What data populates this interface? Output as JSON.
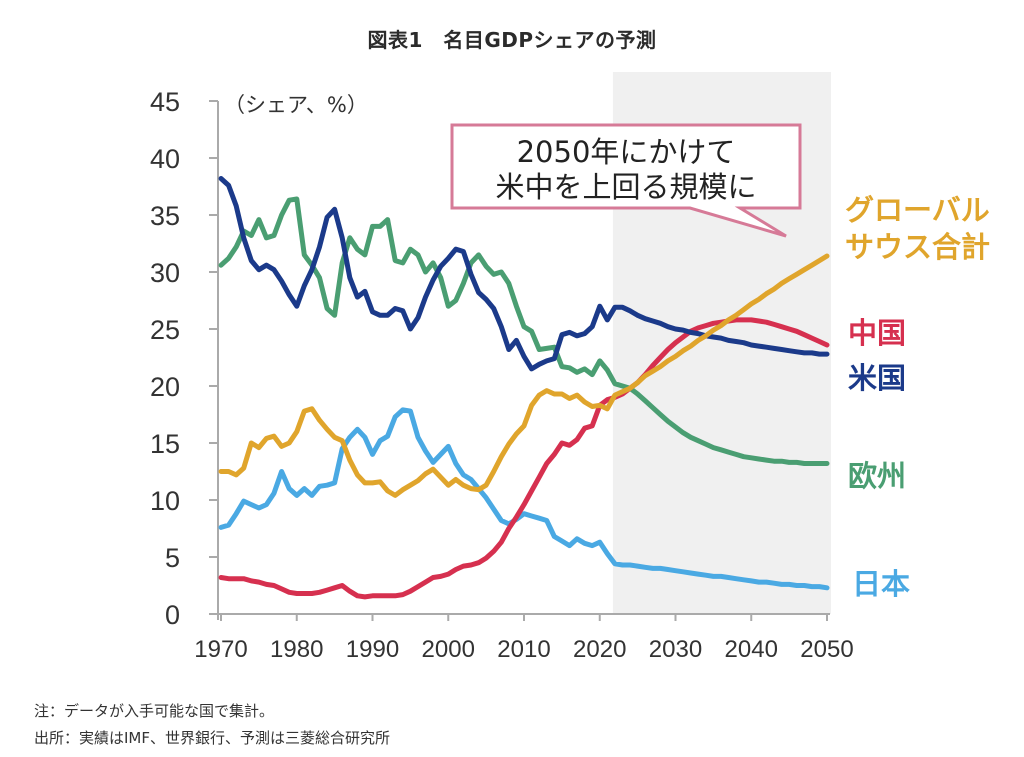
{
  "chart_data": {
    "type": "line",
    "title": "図表1　名目GDPシェアの予測",
    "ylabel": "（シェア、%）",
    "xlabel": "",
    "xlim": [
      1970,
      2050
    ],
    "ylim": [
      0,
      45
    ],
    "xticks": [
      1970,
      1980,
      1990,
      2000,
      2010,
      2020,
      2030,
      2040,
      2050
    ],
    "yticks": [
      0,
      5,
      10,
      15,
      20,
      25,
      30,
      35,
      40,
      45
    ],
    "grid": false,
    "forecast_region": {
      "from": 2022,
      "to": 2050,
      "color": "#f0f0f0"
    },
    "x": [
      1970,
      1971,
      1972,
      1973,
      1974,
      1975,
      1976,
      1977,
      1978,
      1979,
      1980,
      1981,
      1982,
      1983,
      1984,
      1985,
      1986,
      1987,
      1988,
      1989,
      1990,
      1991,
      1992,
      1993,
      1994,
      1995,
      1996,
      1997,
      1998,
      1999,
      2000,
      2001,
      2002,
      2003,
      2004,
      2005,
      2006,
      2007,
      2008,
      2009,
      2010,
      2011,
      2012,
      2013,
      2014,
      2015,
      2016,
      2017,
      2018,
      2019,
      2020,
      2021,
      2022,
      2023,
      2024,
      2025,
      2026,
      2027,
      2028,
      2029,
      2030,
      2031,
      2032,
      2033,
      2034,
      2035,
      2036,
      2037,
      2038,
      2039,
      2040,
      2041,
      2042,
      2043,
      2044,
      2045,
      2046,
      2047,
      2048,
      2049,
      2050
    ],
    "series": [
      {
        "name": "米国",
        "color": "#1b3a8a",
        "values": [
          38.2,
          37.6,
          35.8,
          33.0,
          31.0,
          30.2,
          30.6,
          30.2,
          29.2,
          28.0,
          27.0,
          28.8,
          30.2,
          32.2,
          34.8,
          35.5,
          33.0,
          29.5,
          27.8,
          28.3,
          26.5,
          26.2,
          26.2,
          26.8,
          26.6,
          25.0,
          26.0,
          27.8,
          29.3,
          30.5,
          31.2,
          32.0,
          31.8,
          29.8,
          28.2,
          27.6,
          26.8,
          25.2,
          23.2,
          24.0,
          22.6,
          21.5,
          21.9,
          22.2,
          22.4,
          24.5,
          24.7,
          24.4,
          24.6,
          25.2,
          27.0,
          25.8,
          26.9,
          26.9,
          26.6,
          26.2,
          25.9,
          25.7,
          25.5,
          25.2,
          25.0,
          24.9,
          24.7,
          24.6,
          24.4,
          24.3,
          24.2,
          24.0,
          23.9,
          23.8,
          23.6,
          23.5,
          23.4,
          23.3,
          23.2,
          23.1,
          23.0,
          22.9,
          22.9,
          22.8,
          22.8
        ]
      },
      {
        "name": "中国",
        "color": "#d6304f",
        "values": [
          3.2,
          3.1,
          3.1,
          3.1,
          2.9,
          2.8,
          2.6,
          2.5,
          2.2,
          1.9,
          1.8,
          1.8,
          1.8,
          1.9,
          2.1,
          2.3,
          2.5,
          2.0,
          1.6,
          1.5,
          1.6,
          1.6,
          1.6,
          1.6,
          1.7,
          2.0,
          2.4,
          2.8,
          3.2,
          3.3,
          3.5,
          3.9,
          4.2,
          4.3,
          4.5,
          4.9,
          5.5,
          6.3,
          7.5,
          8.5,
          9.6,
          10.8,
          12.0,
          13.2,
          14.0,
          15.0,
          14.8,
          15.3,
          16.3,
          16.5,
          18.3,
          18.8,
          19.0,
          19.3,
          19.8,
          20.3,
          21.0,
          21.8,
          22.5,
          23.2,
          23.8,
          24.3,
          24.8,
          25.1,
          25.3,
          25.5,
          25.6,
          25.7,
          25.8,
          25.8,
          25.8,
          25.7,
          25.6,
          25.4,
          25.2,
          25.0,
          24.8,
          24.5,
          24.2,
          23.9,
          23.6
        ]
      },
      {
        "name": "欧州",
        "color": "#4a9e72",
        "values": [
          30.6,
          31.2,
          32.2,
          33.6,
          33.2,
          34.6,
          33.0,
          33.2,
          35.0,
          36.3,
          36.4,
          31.5,
          30.6,
          29.5,
          26.8,
          26.2,
          30.8,
          33.0,
          32.0,
          31.5,
          34.0,
          34.0,
          34.6,
          31.0,
          30.8,
          32.0,
          31.5,
          30.0,
          30.8,
          29.5,
          27.0,
          27.5,
          29.0,
          30.8,
          31.5,
          30.5,
          29.8,
          30.0,
          29.0,
          27.0,
          25.2,
          24.8,
          23.2,
          23.3,
          23.4,
          21.7,
          21.6,
          21.2,
          21.5,
          21.0,
          22.2,
          21.4,
          20.2,
          20.0,
          19.8,
          19.3,
          18.7,
          18.1,
          17.5,
          16.9,
          16.4,
          15.9,
          15.5,
          15.2,
          14.9,
          14.6,
          14.4,
          14.2,
          14.0,
          13.8,
          13.7,
          13.6,
          13.5,
          13.4,
          13.4,
          13.3,
          13.3,
          13.2,
          13.2,
          13.2,
          13.2
        ]
      },
      {
        "name": "日本",
        "color": "#4aa9e3",
        "values": [
          7.6,
          7.8,
          8.8,
          9.9,
          9.6,
          9.3,
          9.6,
          10.6,
          12.5,
          11.0,
          10.4,
          11.0,
          10.4,
          11.2,
          11.3,
          11.5,
          14.5,
          15.5,
          16.2,
          15.5,
          14.0,
          15.2,
          15.6,
          17.3,
          17.9,
          17.8,
          15.5,
          14.3,
          13.3,
          14.0,
          14.7,
          13.2,
          12.2,
          11.8,
          11.0,
          10.2,
          9.2,
          8.2,
          7.9,
          8.3,
          8.8,
          8.6,
          8.4,
          8.2,
          6.8,
          6.4,
          6.0,
          6.6,
          6.2,
          6.0,
          6.3,
          5.3,
          4.4,
          4.3,
          4.3,
          4.2,
          4.1,
          4.0,
          4.0,
          3.9,
          3.8,
          3.7,
          3.6,
          3.5,
          3.4,
          3.3,
          3.3,
          3.2,
          3.1,
          3.0,
          2.9,
          2.8,
          2.8,
          2.7,
          2.6,
          2.6,
          2.5,
          2.5,
          2.4,
          2.4,
          2.3
        ]
      },
      {
        "name": "グローバルサウス合計",
        "color": "#e0a52c",
        "values": [
          12.5,
          12.5,
          12.2,
          12.8,
          15.0,
          14.6,
          15.4,
          15.6,
          14.7,
          15.0,
          16.0,
          17.8,
          18.0,
          17.0,
          16.2,
          15.5,
          15.2,
          13.5,
          12.2,
          11.5,
          11.5,
          11.6,
          10.8,
          10.4,
          10.9,
          11.3,
          11.7,
          12.3,
          12.7,
          12.0,
          11.3,
          11.8,
          11.3,
          11.0,
          10.9,
          11.3,
          12.5,
          13.8,
          14.9,
          15.8,
          16.5,
          18.3,
          19.2,
          19.6,
          19.3,
          19.3,
          18.9,
          19.2,
          18.6,
          18.2,
          18.3,
          18.0,
          19.2,
          19.5,
          19.8,
          20.3,
          20.9,
          21.3,
          21.7,
          22.2,
          22.6,
          23.1,
          23.5,
          24.0,
          24.4,
          24.9,
          25.3,
          25.8,
          26.2,
          26.7,
          27.2,
          27.6,
          28.1,
          28.5,
          29.0,
          29.4,
          29.8,
          30.2,
          30.6,
          31.0,
          31.4
        ]
      }
    ],
    "annotations": [
      {
        "text_lines": [
          "2050年にかけて",
          "米中を上回る規模に"
        ],
        "type": "callout",
        "border_color": "#d67a97"
      }
    ],
    "series_labels": [
      {
        "text_lines": [
          "グローバル",
          "サウス合計"
        ],
        "color": "#e0a52c"
      },
      {
        "text_lines": [
          "中国"
        ],
        "color": "#d6304f"
      },
      {
        "text_lines": [
          "米国"
        ],
        "color": "#1b3a8a"
      },
      {
        "text_lines": [
          "欧州"
        ],
        "color": "#4a9e72"
      },
      {
        "text_lines": [
          "日本"
        ],
        "color": "#4aa9e3"
      }
    ]
  },
  "notes": {
    "note": "注：データが入手可能な国で集計。",
    "source": "出所：実績はIMF、世界銀行、予測は三菱総合研究所"
  }
}
